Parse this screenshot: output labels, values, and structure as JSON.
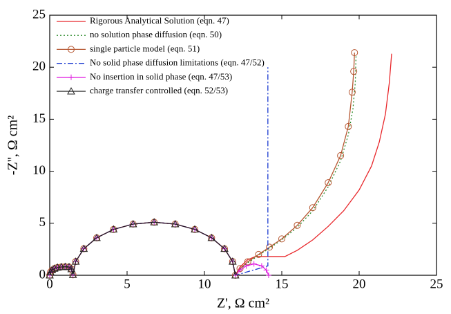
{
  "chart_data": {
    "type": "line",
    "xlabel": "Z', Ω cm²",
    "ylabel": "-Z'', Ω cm²",
    "xlim": [
      0,
      25
    ],
    "ylim": [
      0,
      25
    ],
    "xticks": [
      0,
      5,
      10,
      15,
      20,
      25
    ],
    "yticks": [
      0,
      5,
      10,
      15,
      20,
      25
    ],
    "legend": "upper left",
    "series": [
      {
        "name": "Rigorous Analytical Solution (eqn. 47)",
        "color": "#e8262a",
        "dash": "solid",
        "marker": null,
        "x": [
          0,
          0.05,
          0.15,
          0.3,
          0.5,
          0.75,
          1.0,
          1.25,
          1.4,
          1.5,
          1.679,
          2.203,
          3.038,
          4.125,
          5.391,
          6.75,
          8.109,
          9.375,
          10.462,
          11.297,
          11.821,
          12.0,
          12.3,
          12.8,
          13.3,
          14.0,
          15.2,
          16.0,
          17.0,
          18.0,
          19.0,
          20.0,
          20.8,
          21.3,
          21.7,
          21.95,
          22.1
        ],
        "values": [
          0,
          0.3,
          0.5,
          0.65,
          0.75,
          0.8,
          0.82,
          0.8,
          0.6,
          0.05,
          1.32,
          2.55,
          3.6,
          4.41,
          4.92,
          5.1,
          4.92,
          4.41,
          3.6,
          2.55,
          1.32,
          0,
          0.8,
          1.5,
          1.8,
          1.8,
          1.8,
          2.4,
          3.4,
          4.7,
          6.2,
          8.2,
          10.5,
          12.8,
          15.5,
          18.5,
          21.3
        ]
      },
      {
        "name": "no solution phase diffusion (eqn. 50)",
        "color": "#2a8a2a",
        "dash": "dotted",
        "marker": null,
        "x": [
          0,
          0.05,
          0.15,
          0.3,
          0.5,
          0.75,
          1.0,
          1.25,
          1.4,
          1.5,
          1.679,
          2.203,
          3.038,
          4.125,
          5.391,
          6.75,
          8.109,
          9.375,
          10.462,
          11.297,
          11.821,
          12.0,
          12.3,
          12.8,
          13.5,
          14.2,
          15.0,
          16.0,
          17.0,
          18.0,
          18.8,
          19.3,
          19.6,
          19.75,
          19.8
        ],
        "values": [
          0,
          0.3,
          0.5,
          0.65,
          0.75,
          0.8,
          0.82,
          0.8,
          0.6,
          0.05,
          1.32,
          2.55,
          3.6,
          4.41,
          4.92,
          5.1,
          4.92,
          4.41,
          3.6,
          2.55,
          1.32,
          0,
          0.6,
          1.2,
          1.9,
          2.6,
          3.4,
          4.6,
          6.2,
          8.5,
          11,
          13.5,
          16,
          18.5,
          21.1
        ]
      },
      {
        "name": "single particle model (eqn. 51)",
        "color": "#b5552f",
        "dash": "solid",
        "marker": "circle",
        "x": [
          0,
          0.05,
          0.15,
          0.3,
          0.5,
          0.75,
          1.0,
          1.25,
          1.4,
          1.5,
          1.679,
          2.203,
          3.038,
          4.125,
          5.391,
          6.75,
          8.109,
          9.375,
          10.462,
          11.297,
          11.821,
          12.0,
          12.3,
          12.8,
          13.5,
          14.2,
          15.0,
          16.0,
          17.0,
          18.0,
          18.8,
          19.3,
          19.55,
          19.65,
          19.7
        ],
        "values": [
          0,
          0.3,
          0.5,
          0.65,
          0.75,
          0.8,
          0.82,
          0.8,
          0.6,
          0.05,
          1.32,
          2.55,
          3.6,
          4.41,
          4.92,
          5.1,
          4.92,
          4.41,
          3.6,
          2.55,
          1.32,
          0,
          0.65,
          1.3,
          2.0,
          2.7,
          3.5,
          4.8,
          6.5,
          8.9,
          11.5,
          14.3,
          17.6,
          19.6,
          21.4
        ]
      },
      {
        "name": "No solid phase diffusion limitations (eqn. 47/52)",
        "color": "#1a3ad0",
        "dash": "dashdot",
        "marker": null,
        "x": [
          0,
          0.05,
          0.15,
          0.3,
          0.5,
          0.75,
          1.0,
          1.25,
          1.4,
          1.5,
          1.679,
          2.203,
          3.038,
          4.125,
          5.391,
          6.75,
          8.109,
          9.375,
          10.462,
          11.297,
          11.821,
          12.0,
          14.1,
          14.1
        ],
        "values": [
          0,
          0.3,
          0.5,
          0.65,
          0.75,
          0.8,
          0.82,
          0.8,
          0.6,
          0.05,
          1.32,
          2.55,
          3.6,
          4.41,
          4.92,
          5.1,
          4.92,
          4.41,
          3.6,
          2.55,
          1.32,
          0,
          0.9,
          20
        ]
      },
      {
        "name": "No insertion in solid phase (eqn. 47/53)",
        "color": "#e020e0",
        "dash": "solid",
        "marker": "plus",
        "x": [
          0,
          0.05,
          0.15,
          0.3,
          0.5,
          0.75,
          1.0,
          1.25,
          1.4,
          1.5,
          1.679,
          2.203,
          3.038,
          4.125,
          5.391,
          6.75,
          8.109,
          9.375,
          10.462,
          11.297,
          11.821,
          12.0,
          12.3,
          12.7,
          13.2,
          13.7,
          14.0,
          14.15
        ],
        "values": [
          0,
          0.3,
          0.5,
          0.65,
          0.75,
          0.8,
          0.82,
          0.8,
          0.6,
          0.05,
          1.32,
          2.55,
          3.6,
          4.41,
          4.92,
          5.1,
          4.92,
          4.41,
          3.6,
          2.55,
          1.32,
          0,
          0.5,
          0.9,
          1.1,
          0.9,
          0.5,
          0
        ]
      },
      {
        "name": "charge transfer controlled (eqn. 52/53)",
        "color": "#222222",
        "dash": "solid",
        "marker": "triangle",
        "x": [
          0,
          0.05,
          0.15,
          0.3,
          0.5,
          0.75,
          1.0,
          1.25,
          1.4,
          1.5,
          1.679,
          2.203,
          3.038,
          4.125,
          5.391,
          6.75,
          8.109,
          9.375,
          10.462,
          11.297,
          11.821,
          12.0
        ],
        "values": [
          0,
          0.3,
          0.5,
          0.65,
          0.75,
          0.8,
          0.82,
          0.8,
          0.6,
          0.05,
          1.32,
          2.55,
          3.6,
          4.41,
          4.92,
          5.1,
          4.92,
          4.41,
          3.6,
          2.55,
          1.32,
          0
        ]
      }
    ]
  }
}
